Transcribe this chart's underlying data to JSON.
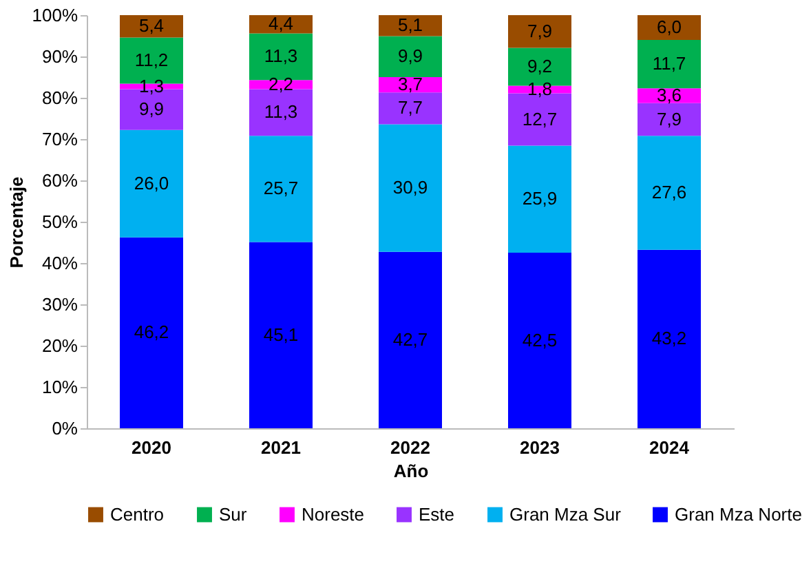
{
  "chart_data": {
    "type": "bar",
    "stacked": true,
    "xlabel": "Año",
    "ylabel": "Porcentaje",
    "categories": [
      "2020",
      "2021",
      "2022",
      "2023",
      "2024"
    ],
    "series": [
      {
        "name": "Gran Mza Norte",
        "color": "#0000ff",
        "values": [
          46.2,
          45.1,
          42.7,
          42.5,
          43.2
        ],
        "value_labels": [
          "46,2",
          "45,1",
          "42,7",
          "42,5",
          "43,2"
        ]
      },
      {
        "name": "Gran Mza Sur",
        "color": "#00b0f0",
        "values": [
          26.0,
          25.7,
          30.9,
          25.9,
          27.6
        ],
        "value_labels": [
          "26,0",
          "25,7",
          "30,9",
          "25,9",
          "27,6"
        ]
      },
      {
        "name": "Este",
        "color": "#9933ff",
        "values": [
          9.9,
          11.3,
          7.7,
          12.7,
          7.9
        ],
        "value_labels": [
          "9,9",
          "11,3",
          "7,7",
          "12,7",
          "7,9"
        ]
      },
      {
        "name": "Noreste",
        "color": "#ff00ff",
        "values": [
          1.3,
          2.2,
          3.7,
          1.8,
          3.6
        ],
        "value_labels": [
          "1,3",
          "2,2",
          "3,7",
          "1,8",
          "3,6"
        ]
      },
      {
        "name": "Sur",
        "color": "#00b050",
        "values": [
          11.2,
          11.3,
          9.9,
          9.2,
          11.7
        ],
        "value_labels": [
          "11,2",
          "11,3",
          "9,9",
          "9,2",
          "11,7"
        ]
      },
      {
        "name": "Centro",
        "color": "#994c00",
        "values": [
          5.4,
          4.4,
          5.1,
          7.9,
          6.0
        ],
        "value_labels": [
          "5,4",
          "4,4",
          "5,1",
          "7,9",
          "6,0"
        ]
      }
    ],
    "ylim": [
      0,
      100
    ],
    "yticks": [
      {
        "value": 0,
        "label": "0%"
      },
      {
        "value": 10,
        "label": "10%"
      },
      {
        "value": 20,
        "label": "20%"
      },
      {
        "value": 30,
        "label": "30%"
      },
      {
        "value": 40,
        "label": "40%"
      },
      {
        "value": 50,
        "label": "50%"
      },
      {
        "value": 60,
        "label": "60%"
      },
      {
        "value": 70,
        "label": "70%"
      },
      {
        "value": 80,
        "label": "80%"
      },
      {
        "value": 90,
        "label": "90%"
      },
      {
        "value": 100,
        "label": "100%"
      }
    ],
    "grid": false,
    "legend": "bottom"
  }
}
